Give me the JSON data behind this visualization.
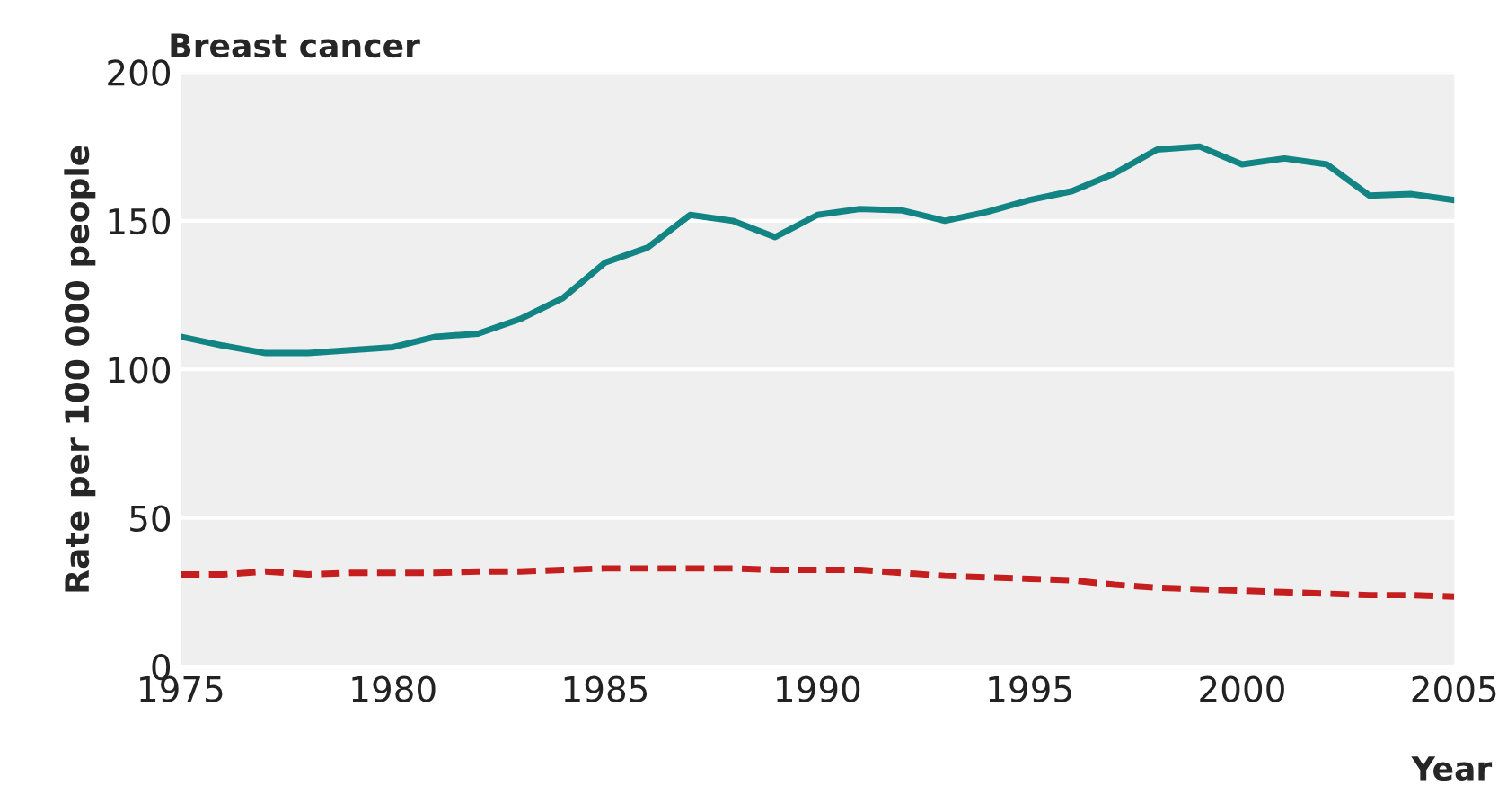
{
  "chart_data": {
    "type": "line",
    "title": "Breast cancer",
    "xlabel": "Year",
    "ylabel": "Rate per 100 000 people",
    "x": [
      1975,
      1976,
      1977,
      1978,
      1979,
      1980,
      1981,
      1982,
      1983,
      1984,
      1985,
      1986,
      1987,
      1988,
      1989,
      1990,
      1991,
      1992,
      1993,
      1994,
      1995,
      1996,
      1997,
      1998,
      1999,
      2000,
      2001,
      2002,
      2003,
      2004,
      2005
    ],
    "series": [
      {
        "color": "#138484",
        "line_style": "solid",
        "values": [
          111,
          108,
          105.5,
          105.5,
          106.5,
          107.5,
          111,
          112,
          117,
          124,
          136,
          141,
          152,
          150,
          144.5,
          152,
          154,
          153.5,
          150,
          153,
          157,
          160,
          166,
          174,
          175,
          169,
          171,
          169,
          158.5,
          159,
          157
        ]
      },
      {
        "color": "#c41e1e",
        "line_style": "dashed",
        "values": [
          31,
          31,
          32,
          31,
          31.5,
          31.5,
          31.5,
          32,
          32,
          32.5,
          33,
          33,
          33,
          33,
          32.5,
          32.5,
          32.5,
          31.5,
          30.5,
          30,
          29.5,
          29,
          27.5,
          26.5,
          26,
          25.5,
          25,
          24.5,
          24,
          24,
          23.5
        ]
      }
    ],
    "xlim": [
      1975,
      2005
    ],
    "xticks": [
      1975,
      1980,
      1985,
      1990,
      1995,
      2000,
      2005
    ],
    "ylim": [
      0,
      200
    ],
    "yticks": [
      0,
      50,
      100,
      150,
      200
    ],
    "grid": "y",
    "legend": false,
    "marker": "none"
  }
}
